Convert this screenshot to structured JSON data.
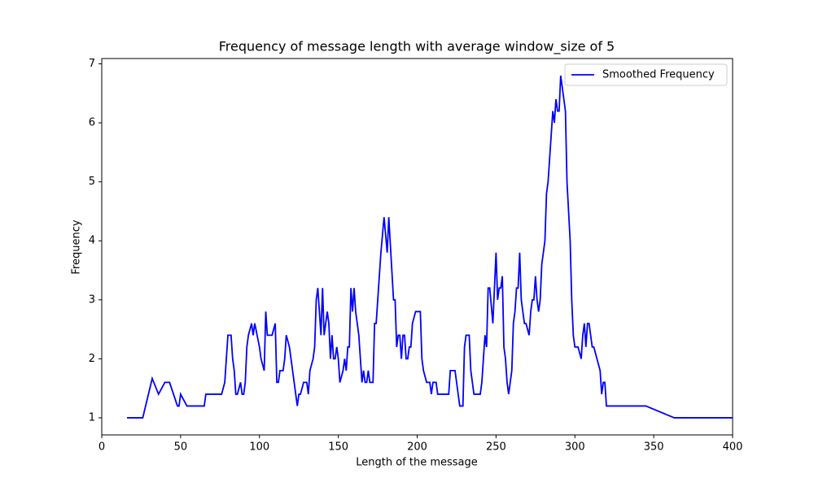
{
  "chart_data": {
    "type": "line",
    "title": "Frequency of message length with average window_size of 5",
    "xlabel": "Length of the message",
    "ylabel": "Frequency",
    "x": [
      16,
      26,
      32,
      36,
      40,
      43,
      48,
      49,
      50,
      54,
      65,
      66,
      76,
      78,
      80,
      82,
      83,
      84,
      85,
      86,
      88,
      89,
      90,
      91,
      92,
      93,
      95,
      96,
      97,
      100,
      101,
      103,
      104,
      105,
      108,
      110,
      111,
      112,
      113,
      115,
      116,
      117,
      119,
      120,
      122,
      123,
      124,
      125,
      126,
      128,
      130,
      131,
      132,
      134,
      135,
      136,
      137,
      138,
      139,
      140,
      141,
      143,
      144,
      145,
      146,
      147,
      148,
      149,
      150,
      151,
      153,
      154,
      155,
      156,
      157,
      158,
      159,
      160,
      161,
      162,
      163,
      164,
      165,
      166,
      167,
      168,
      169,
      170,
      172,
      173,
      174,
      175,
      177,
      179,
      181,
      182,
      185,
      186,
      187,
      188,
      189,
      190,
      191,
      192,
      193,
      194,
      195,
      196,
      197,
      199,
      202,
      203,
      204,
      206,
      208,
      209,
      210,
      212,
      213,
      220,
      221,
      224,
      227,
      229,
      230,
      231,
      233,
      234,
      236,
      240,
      241,
      243,
      244,
      245,
      246,
      248,
      250,
      251,
      252,
      253,
      254,
      255,
      256,
      257,
      258,
      260,
      261,
      262,
      263,
      264,
      265,
      266,
      267,
      268,
      269,
      271,
      272,
      273,
      274,
      275,
      276,
      277,
      278,
      279,
      281,
      282,
      283,
      285,
      286,
      287,
      288,
      289,
      290,
      291,
      294,
      295,
      297,
      298,
      299,
      300,
      302,
      304,
      305,
      306,
      307,
      308,
      309,
      311,
      312,
      316,
      317,
      318,
      319,
      320,
      345,
      363,
      400
    ],
    "series": [
      {
        "name": "Smoothed Frequency",
        "color": "#0000ff",
        "values": [
          1,
          1,
          1.667,
          1.4,
          1.6,
          1.6,
          1.2,
          1.2,
          1.4,
          1.2,
          1.2,
          1.4,
          1.4,
          1.6,
          2.4,
          2.4,
          2,
          1.8,
          1.4,
          1.4,
          1.6,
          1.4,
          1.4,
          1.6,
          2.2,
          2.4,
          2.6,
          2.4,
          2.6,
          2.2,
          2,
          1.8,
          2.8,
          2.4,
          2.4,
          2.6,
          1.6,
          1.6,
          1.8,
          1.8,
          2,
          2.4,
          2.2,
          2,
          1.6,
          1.4,
          1.2,
          1.4,
          1.4,
          1.6,
          1.6,
          1.4,
          1.8,
          2,
          2.2,
          3,
          3.2,
          2.8,
          2.4,
          3.2,
          2.4,
          2.8,
          2.6,
          2,
          2.4,
          2,
          2,
          2.2,
          2,
          1.6,
          1.8,
          2,
          1.8,
          2.2,
          2.2,
          3.2,
          2.8,
          3.2,
          2.8,
          2.6,
          2.4,
          2,
          1.6,
          1.8,
          1.6,
          1.6,
          1.8,
          1.6,
          1.6,
          2.6,
          2.6,
          3,
          3.8,
          4.4,
          3.8,
          4.4,
          3,
          3,
          2.2,
          2.4,
          2.4,
          2,
          2.4,
          2.4,
          2,
          2,
          2.2,
          2.2,
          2.6,
          2.8,
          2.8,
          2,
          1.8,
          1.6,
          1.6,
          1.4,
          1.6,
          1.6,
          1.4,
          1.4,
          1.8,
          1.8,
          1.2,
          1.2,
          2.2,
          2.4,
          2.4,
          1.8,
          1.4,
          1.4,
          1.6,
          2.4,
          2.2,
          3.2,
          3.2,
          2.6,
          3.8,
          3,
          3.2,
          3.2,
          3.4,
          2.2,
          2,
          1.6,
          1.4,
          1.8,
          2.6,
          2.8,
          3.2,
          3.2,
          3.8,
          3,
          2.8,
          2.6,
          2.6,
          2.4,
          2.8,
          3,
          3,
          3.4,
          3,
          2.8,
          3,
          3.6,
          4,
          4.8,
          5,
          5.8,
          6.2,
          6,
          6.4,
          6.2,
          6.2,
          6.8,
          6.2,
          5,
          4,
          3,
          2.4,
          2.2,
          2.2,
          2,
          2.4,
          2.6,
          2.2,
          2.6,
          2.6,
          2.2,
          2.2,
          1.8,
          1.4,
          1.6,
          1.6,
          1.2,
          1.2,
          1,
          1
        ]
      }
    ],
    "xlim": [
      0,
      400
    ],
    "xticks": [
      0,
      50,
      100,
      150,
      200,
      250,
      300,
      350,
      400
    ],
    "ylim": [
      0.71,
      7.09
    ],
    "yticks": [
      1,
      2,
      3,
      4,
      5,
      6,
      7
    ],
    "legend": "upper right"
  }
}
